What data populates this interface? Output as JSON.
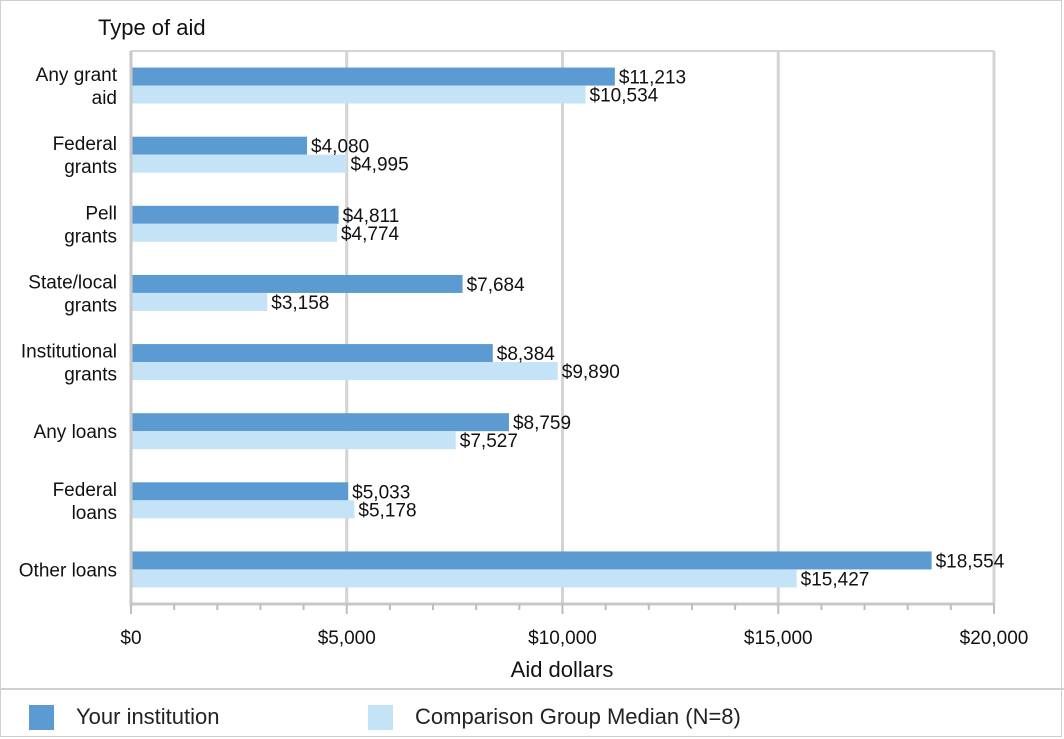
{
  "chart_data": {
    "type": "bar",
    "orientation": "horizontal",
    "title": "Type of aid",
    "xlabel": "Aid dollars",
    "xlim": [
      0,
      20000
    ],
    "xticks": [
      0,
      5000,
      10000,
      15000,
      20000
    ],
    "xtick_labels": [
      "$0",
      "$5,000",
      "$10,000",
      "$15,000",
      "$20,000"
    ],
    "categories": [
      [
        "Any grant",
        "aid"
      ],
      [
        "Federal",
        "grants"
      ],
      [
        "Pell",
        "grants"
      ],
      [
        "State/local",
        "grants"
      ],
      [
        "Institutional",
        "grants"
      ],
      [
        "Any loans"
      ],
      [
        "Federal",
        "loans"
      ],
      [
        "Other loans"
      ]
    ],
    "series": [
      {
        "name": "Your institution",
        "color": "#5b9bd1",
        "values": [
          11213,
          4080,
          4811,
          7684,
          8384,
          8759,
          5033,
          18554
        ],
        "labels": [
          "$11,213",
          "$4,080",
          "$4,811",
          "$7,684",
          "$8,384",
          "$8,759",
          "$5,033",
          "$18,554"
        ]
      },
      {
        "name": "Comparison Group Median (N=8)",
        "color": "#c5e3f7",
        "values": [
          10534,
          4995,
          4774,
          3158,
          9890,
          7527,
          5178,
          15427
        ],
        "labels": [
          "$10,534",
          "$4,995",
          "$4,774",
          "$3,158",
          "$9,890",
          "$7,527",
          "$5,178",
          "$15,427"
        ]
      }
    ],
    "grid": true,
    "legend_position": "bottom"
  },
  "legend": {
    "institution_label": "Your institution",
    "median_label": "Comparison Group Median (N=8)",
    "institution_color": "#5b9bd1",
    "median_color": "#c5e3f7"
  }
}
